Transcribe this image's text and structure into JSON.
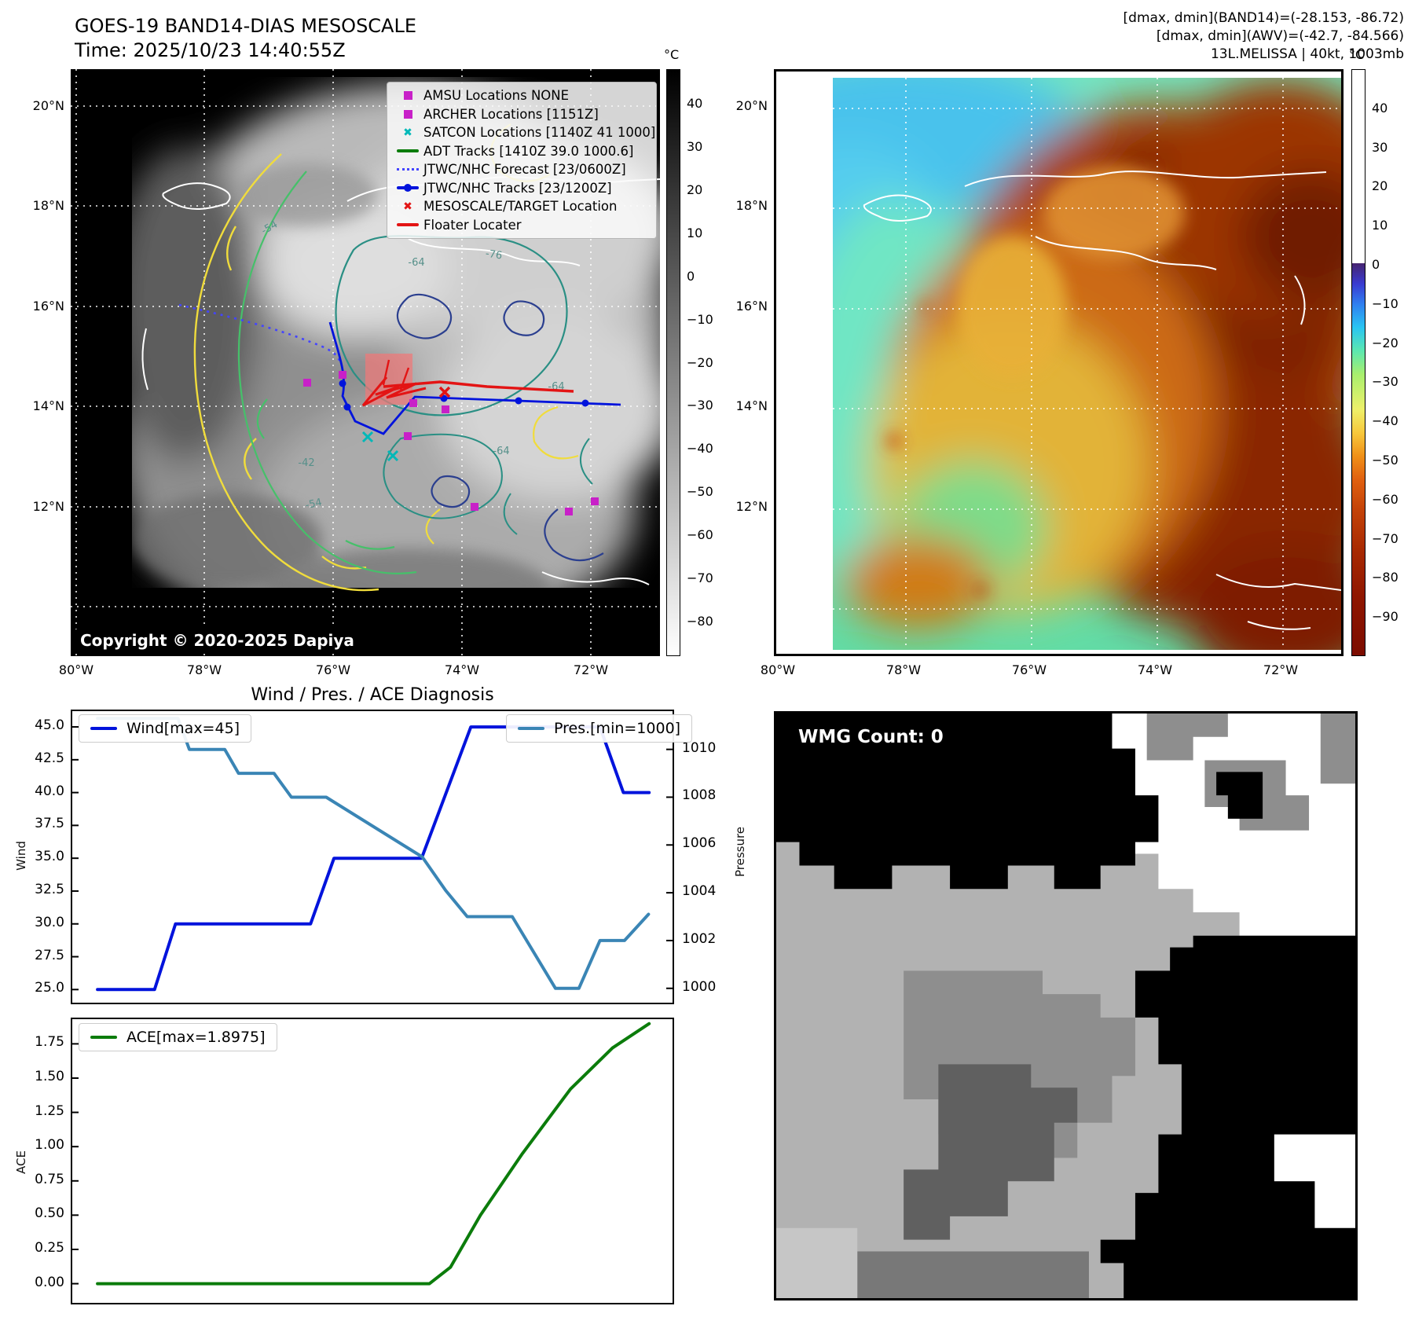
{
  "header": {
    "title_line1": "GOES-19 BAND14-DIAS MESOSCALE",
    "title_line2": "Time: 2025/10/23 14:40:55Z",
    "right_line1": "[dmax, dmin](BAND14)=(-28.153, -86.72)",
    "right_line2": "[dmax, dmin](AWV)=(-42.7, -84.566)",
    "right_line3": "13L.MELISSA | 40kt, 1003mb"
  },
  "maps": {
    "lat_ticks": [
      "20°N",
      "18°N",
      "16°N",
      "14°N",
      "12°N"
    ],
    "lon_ticks": [
      "80°W",
      "78°W",
      "76°W",
      "74°W",
      "72°W"
    ],
    "copyright": "Copyright © 2020-2025 Dapiya"
  },
  "left_map": {
    "legend": [
      {
        "marker": "square",
        "color": "#c820c8",
        "label": "AMSU Locations NONE"
      },
      {
        "marker": "square",
        "color": "#c820c8",
        "label": "ARCHER Locations [1151Z]"
      },
      {
        "marker": "x",
        "color": "#00b8b8",
        "label": "SATCON Locations [1140Z 41 1000]"
      },
      {
        "marker": "line",
        "color": "#0b7c0b",
        "label": "ADT Tracks [1410Z 39.0 1000.6]"
      },
      {
        "marker": "dotted",
        "color": "#4444ff",
        "label": "JTWC/NHC Forecast [23/0600Z]"
      },
      {
        "marker": "line-dot",
        "color": "#0013dc",
        "label": "JTWC/NHC Tracks [23/1200Z]"
      },
      {
        "marker": "x",
        "color": "#e31414",
        "label": "MESOSCALE/TARGET Location"
      },
      {
        "marker": "line",
        "color": "#e31414",
        "label": "Floater Locater"
      }
    ],
    "colorbar": {
      "unit": "°C",
      "ticks": [
        "40",
        "30",
        "20",
        "10",
        "0",
        "-10",
        "-20",
        "-30",
        "-40",
        "-50",
        "-60",
        "-70",
        "-80"
      ],
      "vmax": 48,
      "vmin": -88
    },
    "contour_labels": [
      "-54",
      "-64",
      "-76",
      "-64",
      "-64",
      "-54",
      "-42"
    ]
  },
  "right_map": {
    "colorbar": {
      "unit": "°C",
      "ticks": [
        "40",
        "30",
        "20",
        "10",
        "0",
        "-10",
        "-20",
        "-30",
        "-40",
        "-50",
        "-60",
        "-70",
        "-80",
        "-90"
      ],
      "vmax": 50,
      "vmin": -100
    }
  },
  "chart_data": [
    {
      "type": "line",
      "title": "Wind / Pres. / ACE Diagnosis",
      "x_range": [
        0,
        1
      ],
      "grid": false,
      "series": [
        {
          "name": "Wind[max=45]",
          "color": "#0013dc",
          "axis": "left",
          "axis_label": "Wind",
          "ylim": [
            24.0,
            46.2
          ],
          "yticks": [
            "25.0",
            "27.5",
            "30.0",
            "32.5",
            "35.0",
            "37.5",
            "40.0",
            "42.5",
            "45.0"
          ],
          "points": [
            [
              0.042,
              25
            ],
            [
              0.137,
              25
            ],
            [
              0.172,
              30
            ],
            [
              0.397,
              30
            ],
            [
              0.436,
              35
            ],
            [
              0.582,
              35
            ],
            [
              0.664,
              45
            ],
            [
              0.879,
              45
            ],
            [
              0.918,
              40
            ],
            [
              0.961,
              40
            ]
          ]
        },
        {
          "name": "Pres.[min=1000]",
          "color": "#3a85b5",
          "axis": "right",
          "axis_label": "Pressure",
          "ylim": [
            999.4,
            1011.6
          ],
          "yticks": [
            "1000",
            "1002",
            "1004",
            "1006",
            "1008",
            "1010"
          ],
          "points": [
            [
              0.042,
              1011.3
            ],
            [
              0.176,
              1011.3
            ],
            [
              0.195,
              1010
            ],
            [
              0.254,
              1010
            ],
            [
              0.277,
              1009
            ],
            [
              0.336,
              1009
            ],
            [
              0.365,
              1008
            ],
            [
              0.423,
              1008
            ],
            [
              0.583,
              1005.5
            ],
            [
              0.622,
              1004.1
            ],
            [
              0.658,
              1003
            ],
            [
              0.733,
              1003
            ],
            [
              0.805,
              1000
            ],
            [
              0.844,
              1000
            ],
            [
              0.879,
              1002
            ],
            [
              0.92,
              1002
            ],
            [
              0.96,
              1003.1
            ]
          ]
        }
      ]
    },
    {
      "type": "line",
      "series": [
        {
          "name": "ACE[max=1.8975]",
          "color": "#0b7c0b",
          "axis": "left",
          "axis_label": "ACE",
          "ylim": [
            -0.14,
            1.93
          ],
          "yticks": [
            "0.00",
            "0.25",
            "0.50",
            "0.75",
            "1.00",
            "1.25",
            "1.50",
            "1.75"
          ],
          "points": [
            [
              0.042,
              0
            ],
            [
              0.595,
              0
            ],
            [
              0.63,
              0.12
            ],
            [
              0.68,
              0.5
            ],
            [
              0.75,
              0.95
            ],
            [
              0.83,
              1.42
            ],
            [
              0.9,
              1.72
            ],
            [
              0.961,
              1.8975
            ]
          ]
        }
      ]
    }
  ],
  "wmg": {
    "label": "WMG Count: 0",
    "regions": [
      {
        "name": "base-silver",
        "color": "#b2b2b2",
        "points": [
          [
            0,
            0
          ],
          [
            100,
            0
          ],
          [
            100,
            100
          ],
          [
            0,
            100
          ]
        ]
      },
      {
        "name": "white-top",
        "color": "#ffffff",
        "points": [
          [
            55,
            0
          ],
          [
            100,
            0
          ],
          [
            100,
            38
          ],
          [
            80,
            38
          ],
          [
            80,
            34
          ],
          [
            72,
            34
          ],
          [
            72,
            30
          ],
          [
            66,
            30
          ],
          [
            66,
            24
          ],
          [
            62,
            24
          ],
          [
            62,
            16
          ],
          [
            58,
            16
          ],
          [
            58,
            8
          ],
          [
            55,
            8
          ]
        ]
      },
      {
        "name": "gray-patch-1",
        "color": "#8e8e8e",
        "points": [
          [
            64,
            0
          ],
          [
            78,
            0
          ],
          [
            78,
            4
          ],
          [
            72,
            4
          ],
          [
            72,
            8
          ],
          [
            64,
            8
          ]
        ]
      },
      {
        "name": "gray-patch-2",
        "color": "#8e8e8e",
        "points": [
          [
            74,
            8
          ],
          [
            88,
            8
          ],
          [
            88,
            14
          ],
          [
            92,
            14
          ],
          [
            92,
            20
          ],
          [
            80,
            20
          ],
          [
            80,
            16
          ],
          [
            74,
            16
          ]
        ]
      },
      {
        "name": "gray-patch-3",
        "color": "#8e8e8e",
        "points": [
          [
            94,
            0
          ],
          [
            100,
            0
          ],
          [
            100,
            12
          ],
          [
            94,
            12
          ]
        ]
      },
      {
        "name": "black-patch",
        "color": "#000000",
        "points": [
          [
            76,
            10
          ],
          [
            84,
            10
          ],
          [
            84,
            18
          ],
          [
            78,
            18
          ],
          [
            78,
            14
          ],
          [
            76,
            14
          ]
        ]
      },
      {
        "name": "black-top",
        "color": "#000000",
        "points": [
          [
            0,
            0
          ],
          [
            58,
            0
          ],
          [
            58,
            6
          ],
          [
            62,
            6
          ],
          [
            62,
            14
          ],
          [
            66,
            14
          ],
          [
            66,
            22
          ],
          [
            62,
            22
          ],
          [
            62,
            26
          ],
          [
            56,
            26
          ],
          [
            56,
            30
          ],
          [
            48,
            30
          ],
          [
            48,
            26
          ],
          [
            40,
            26
          ],
          [
            40,
            30
          ],
          [
            30,
            30
          ],
          [
            30,
            26
          ],
          [
            20,
            26
          ],
          [
            20,
            30
          ],
          [
            10,
            30
          ],
          [
            10,
            26
          ],
          [
            4,
            26
          ],
          [
            4,
            22
          ],
          [
            0,
            22
          ]
        ]
      },
      {
        "name": "black-right",
        "color": "#000000",
        "points": [
          [
            72,
            38
          ],
          [
            100,
            38
          ],
          [
            100,
            100
          ],
          [
            60,
            100
          ],
          [
            60,
            94
          ],
          [
            56,
            94
          ],
          [
            56,
            90
          ],
          [
            62,
            90
          ],
          [
            62,
            82
          ],
          [
            66,
            82
          ],
          [
            66,
            72
          ],
          [
            70,
            72
          ],
          [
            70,
            60
          ],
          [
            66,
            60
          ],
          [
            66,
            52
          ],
          [
            62,
            52
          ],
          [
            62,
            44
          ],
          [
            68,
            44
          ],
          [
            68,
            40
          ],
          [
            72,
            40
          ]
        ]
      },
      {
        "name": "white-notch",
        "color": "#ffffff",
        "points": [
          [
            86,
            72
          ],
          [
            100,
            72
          ],
          [
            100,
            88
          ],
          [
            93,
            88
          ],
          [
            93,
            80
          ],
          [
            86,
            80
          ]
        ]
      },
      {
        "name": "gray-blob",
        "color": "#8e8e8e",
        "points": [
          [
            22,
            44
          ],
          [
            46,
            44
          ],
          [
            46,
            48
          ],
          [
            56,
            48
          ],
          [
            56,
            52
          ],
          [
            62,
            52
          ],
          [
            62,
            62
          ],
          [
            58,
            62
          ],
          [
            58,
            70
          ],
          [
            52,
            70
          ],
          [
            52,
            76
          ],
          [
            38,
            76
          ],
          [
            38,
            72
          ],
          [
            28,
            72
          ],
          [
            28,
            66
          ],
          [
            22,
            66
          ]
        ]
      },
      {
        "name": "dark-blob",
        "color": "#606060",
        "points": [
          [
            28,
            60
          ],
          [
            44,
            60
          ],
          [
            44,
            64
          ],
          [
            52,
            64
          ],
          [
            52,
            70
          ],
          [
            48,
            70
          ],
          [
            48,
            80
          ],
          [
            40,
            80
          ],
          [
            40,
            86
          ],
          [
            30,
            86
          ],
          [
            30,
            90
          ],
          [
            22,
            90
          ],
          [
            22,
            78
          ],
          [
            28,
            78
          ]
        ]
      },
      {
        "name": "bottom-strip",
        "color": "#787878",
        "points": [
          [
            14,
            92
          ],
          [
            54,
            92
          ],
          [
            54,
            100
          ],
          [
            14,
            100
          ]
        ]
      },
      {
        "name": "corner-light",
        "color": "#c6c6c6",
        "points": [
          [
            0,
            88
          ],
          [
            14,
            88
          ],
          [
            14,
            100
          ],
          [
            0,
            100
          ]
        ]
      }
    ]
  }
}
